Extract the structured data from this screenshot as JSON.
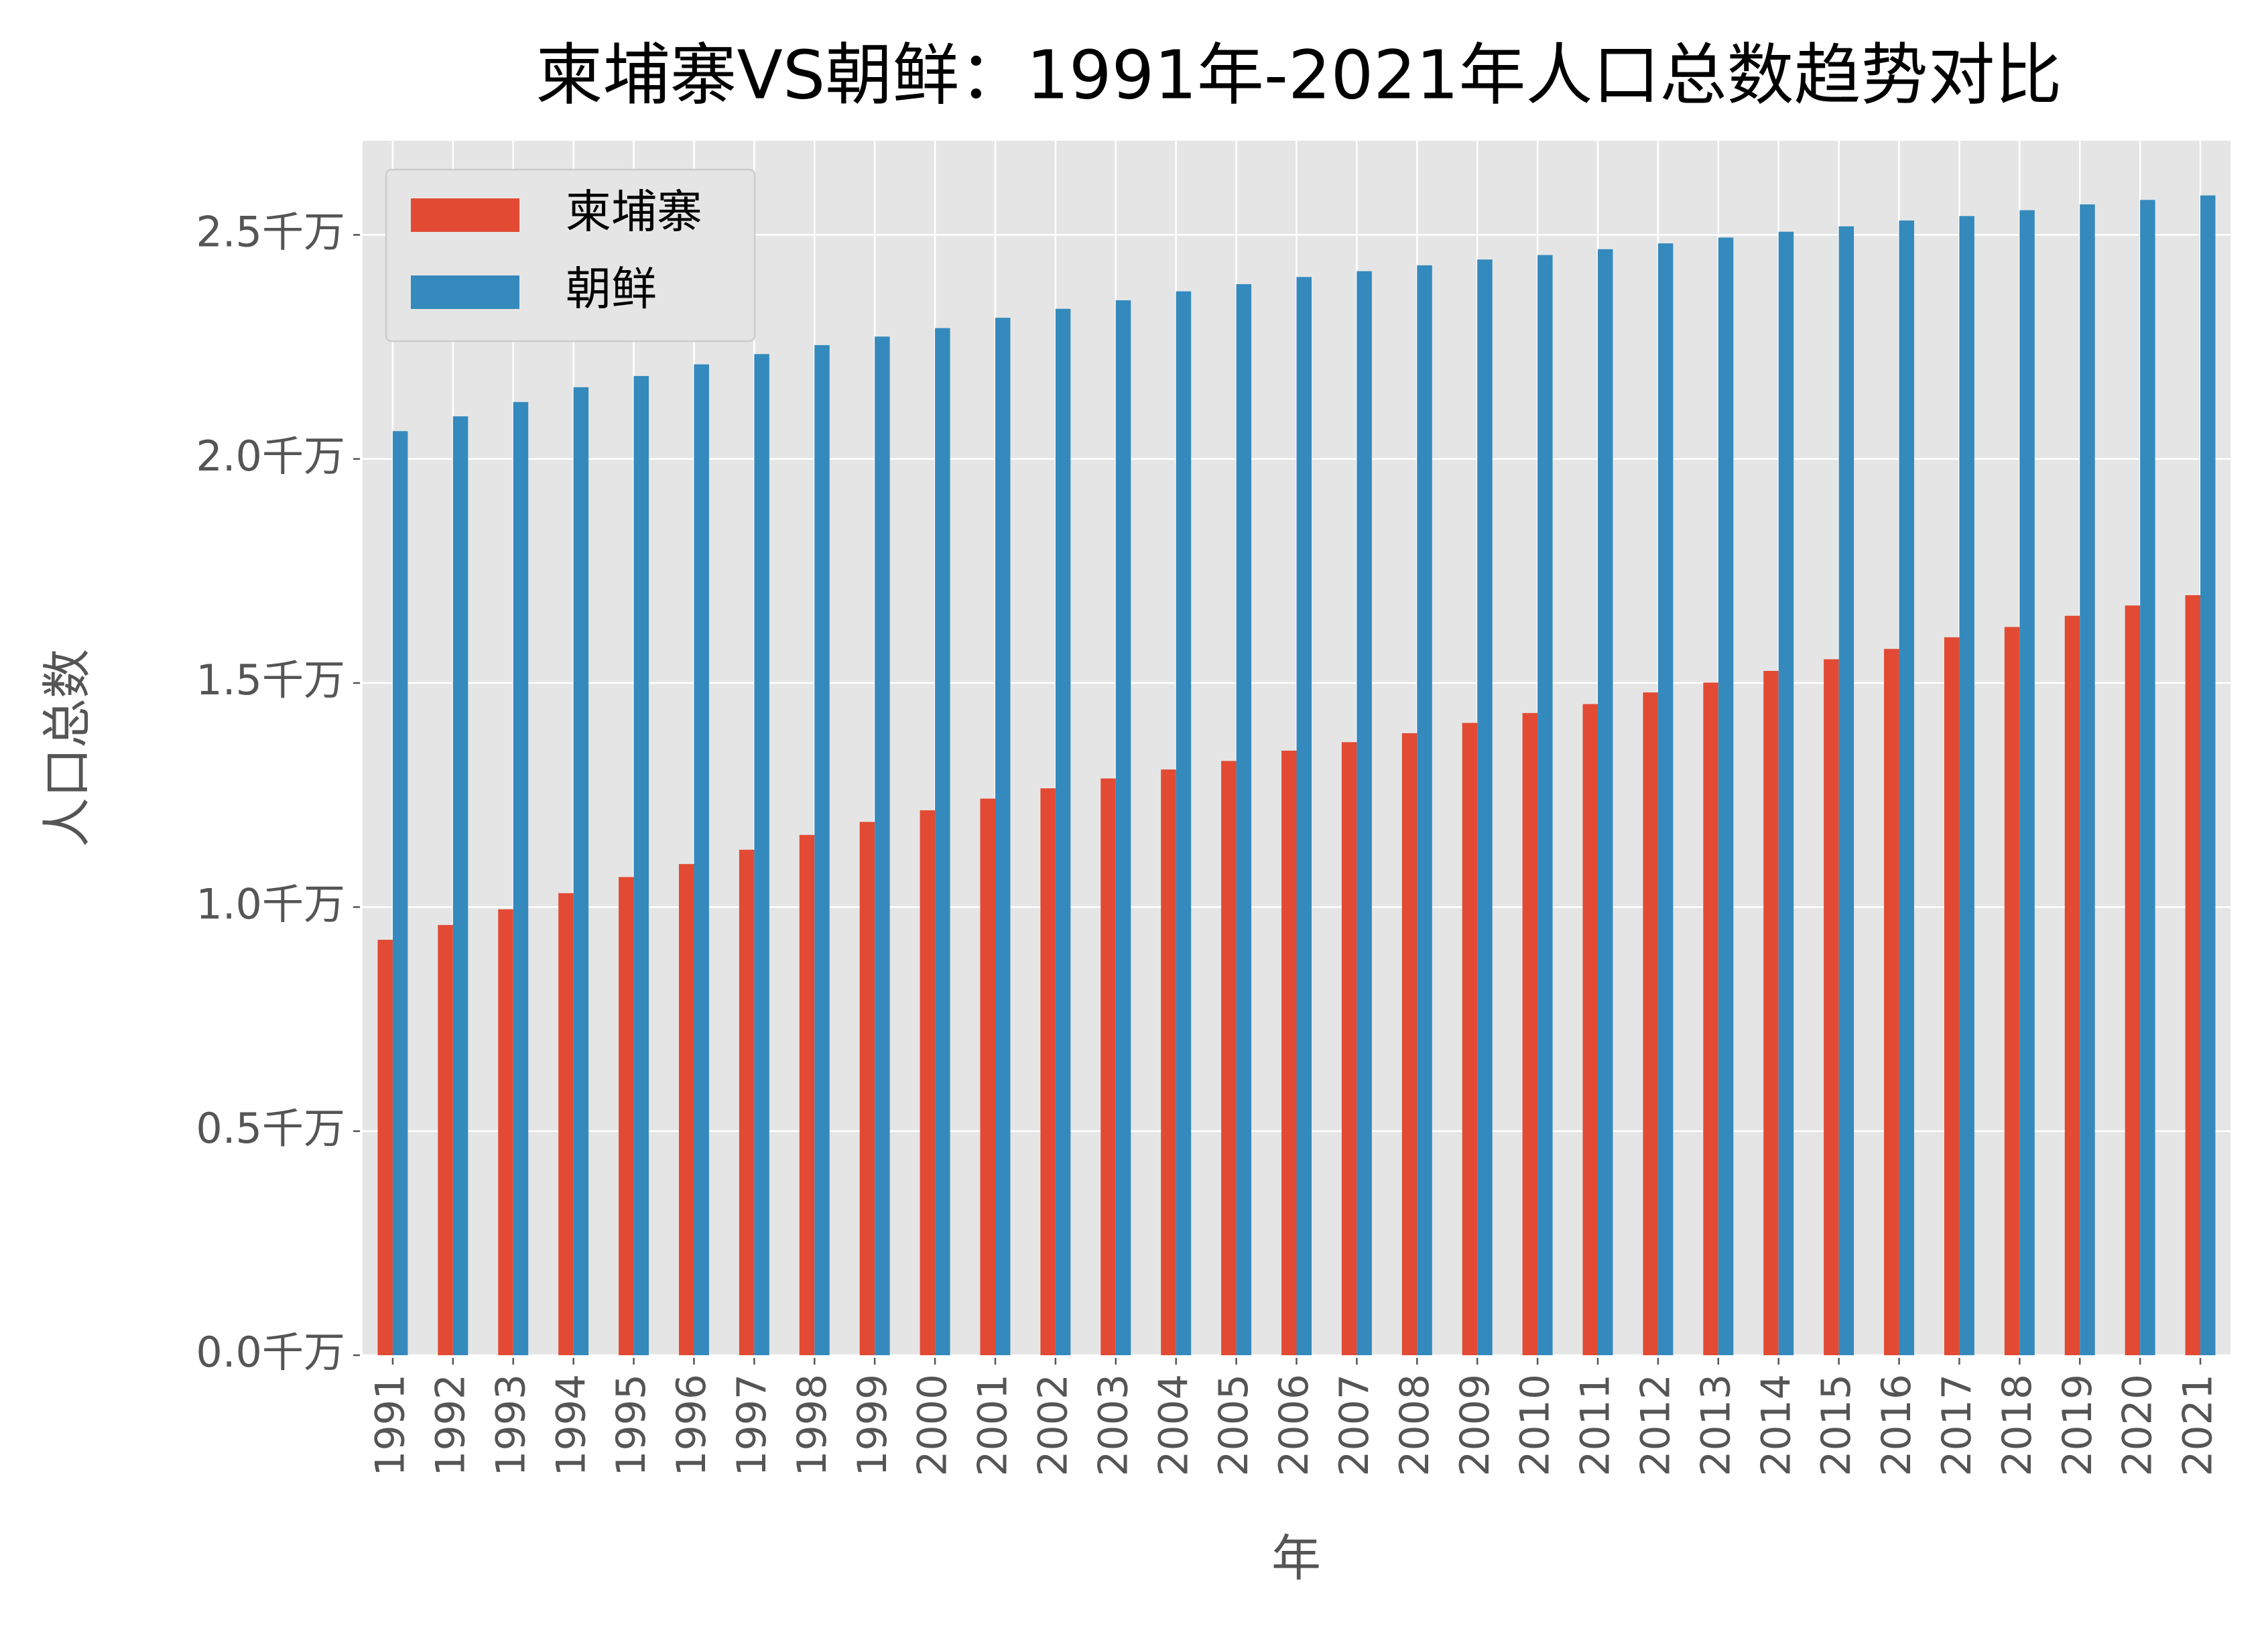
{
  "chart_data": {
    "type": "bar",
    "title": "柬埔寨VS朝鲜：1991年-2021年人口总数趋势对比",
    "x_label": "年",
    "y_label": "人口总数",
    "categories": [
      "1991",
      "1992",
      "1993",
      "1994",
      "1995",
      "1996",
      "1997",
      "1998",
      "1999",
      "2000",
      "2001",
      "2002",
      "2003",
      "2004",
      "2005",
      "2006",
      "2007",
      "2008",
      "2009",
      "2010",
      "2011",
      "2012",
      "2013",
      "2014",
      "2015",
      "2016",
      "2017",
      "2018",
      "2019",
      "2020",
      "2021"
    ],
    "series": [
      {
        "name": "柬埔寨",
        "color": "#e24a33",
        "values": [
          0.927,
          0.96,
          0.995,
          1.031,
          1.067,
          1.096,
          1.128,
          1.161,
          1.19,
          1.216,
          1.242,
          1.265,
          1.287,
          1.307,
          1.326,
          1.349,
          1.368,
          1.388,
          1.411,
          1.433,
          1.453,
          1.479,
          1.501,
          1.527,
          1.553,
          1.576,
          1.602,
          1.625,
          1.65,
          1.673,
          1.696
        ]
      },
      {
        "name": "朝鲜",
        "color": "#348abd",
        "values": [
          2.062,
          2.095,
          2.127,
          2.16,
          2.185,
          2.211,
          2.234,
          2.254,
          2.273,
          2.292,
          2.315,
          2.335,
          2.354,
          2.374,
          2.39,
          2.406,
          2.419,
          2.432,
          2.445,
          2.455,
          2.468,
          2.481,
          2.494,
          2.507,
          2.519,
          2.532,
          2.542,
          2.555,
          2.568,
          2.578,
          2.588
        ]
      }
    ],
    "ylim": [
      0,
      2.71
    ],
    "yticks": [
      {
        "value": 0,
        "label": "0.0千万"
      },
      {
        "value": 0.5,
        "label": "0.5千万"
      },
      {
        "value": 1.0,
        "label": "1.0千万"
      },
      {
        "value": 1.5,
        "label": "1.5千万"
      },
      {
        "value": 2.0,
        "label": "2.0千万"
      },
      {
        "value": 2.5,
        "label": "2.5千万"
      }
    ],
    "grid": true,
    "legend": "upper left"
  }
}
